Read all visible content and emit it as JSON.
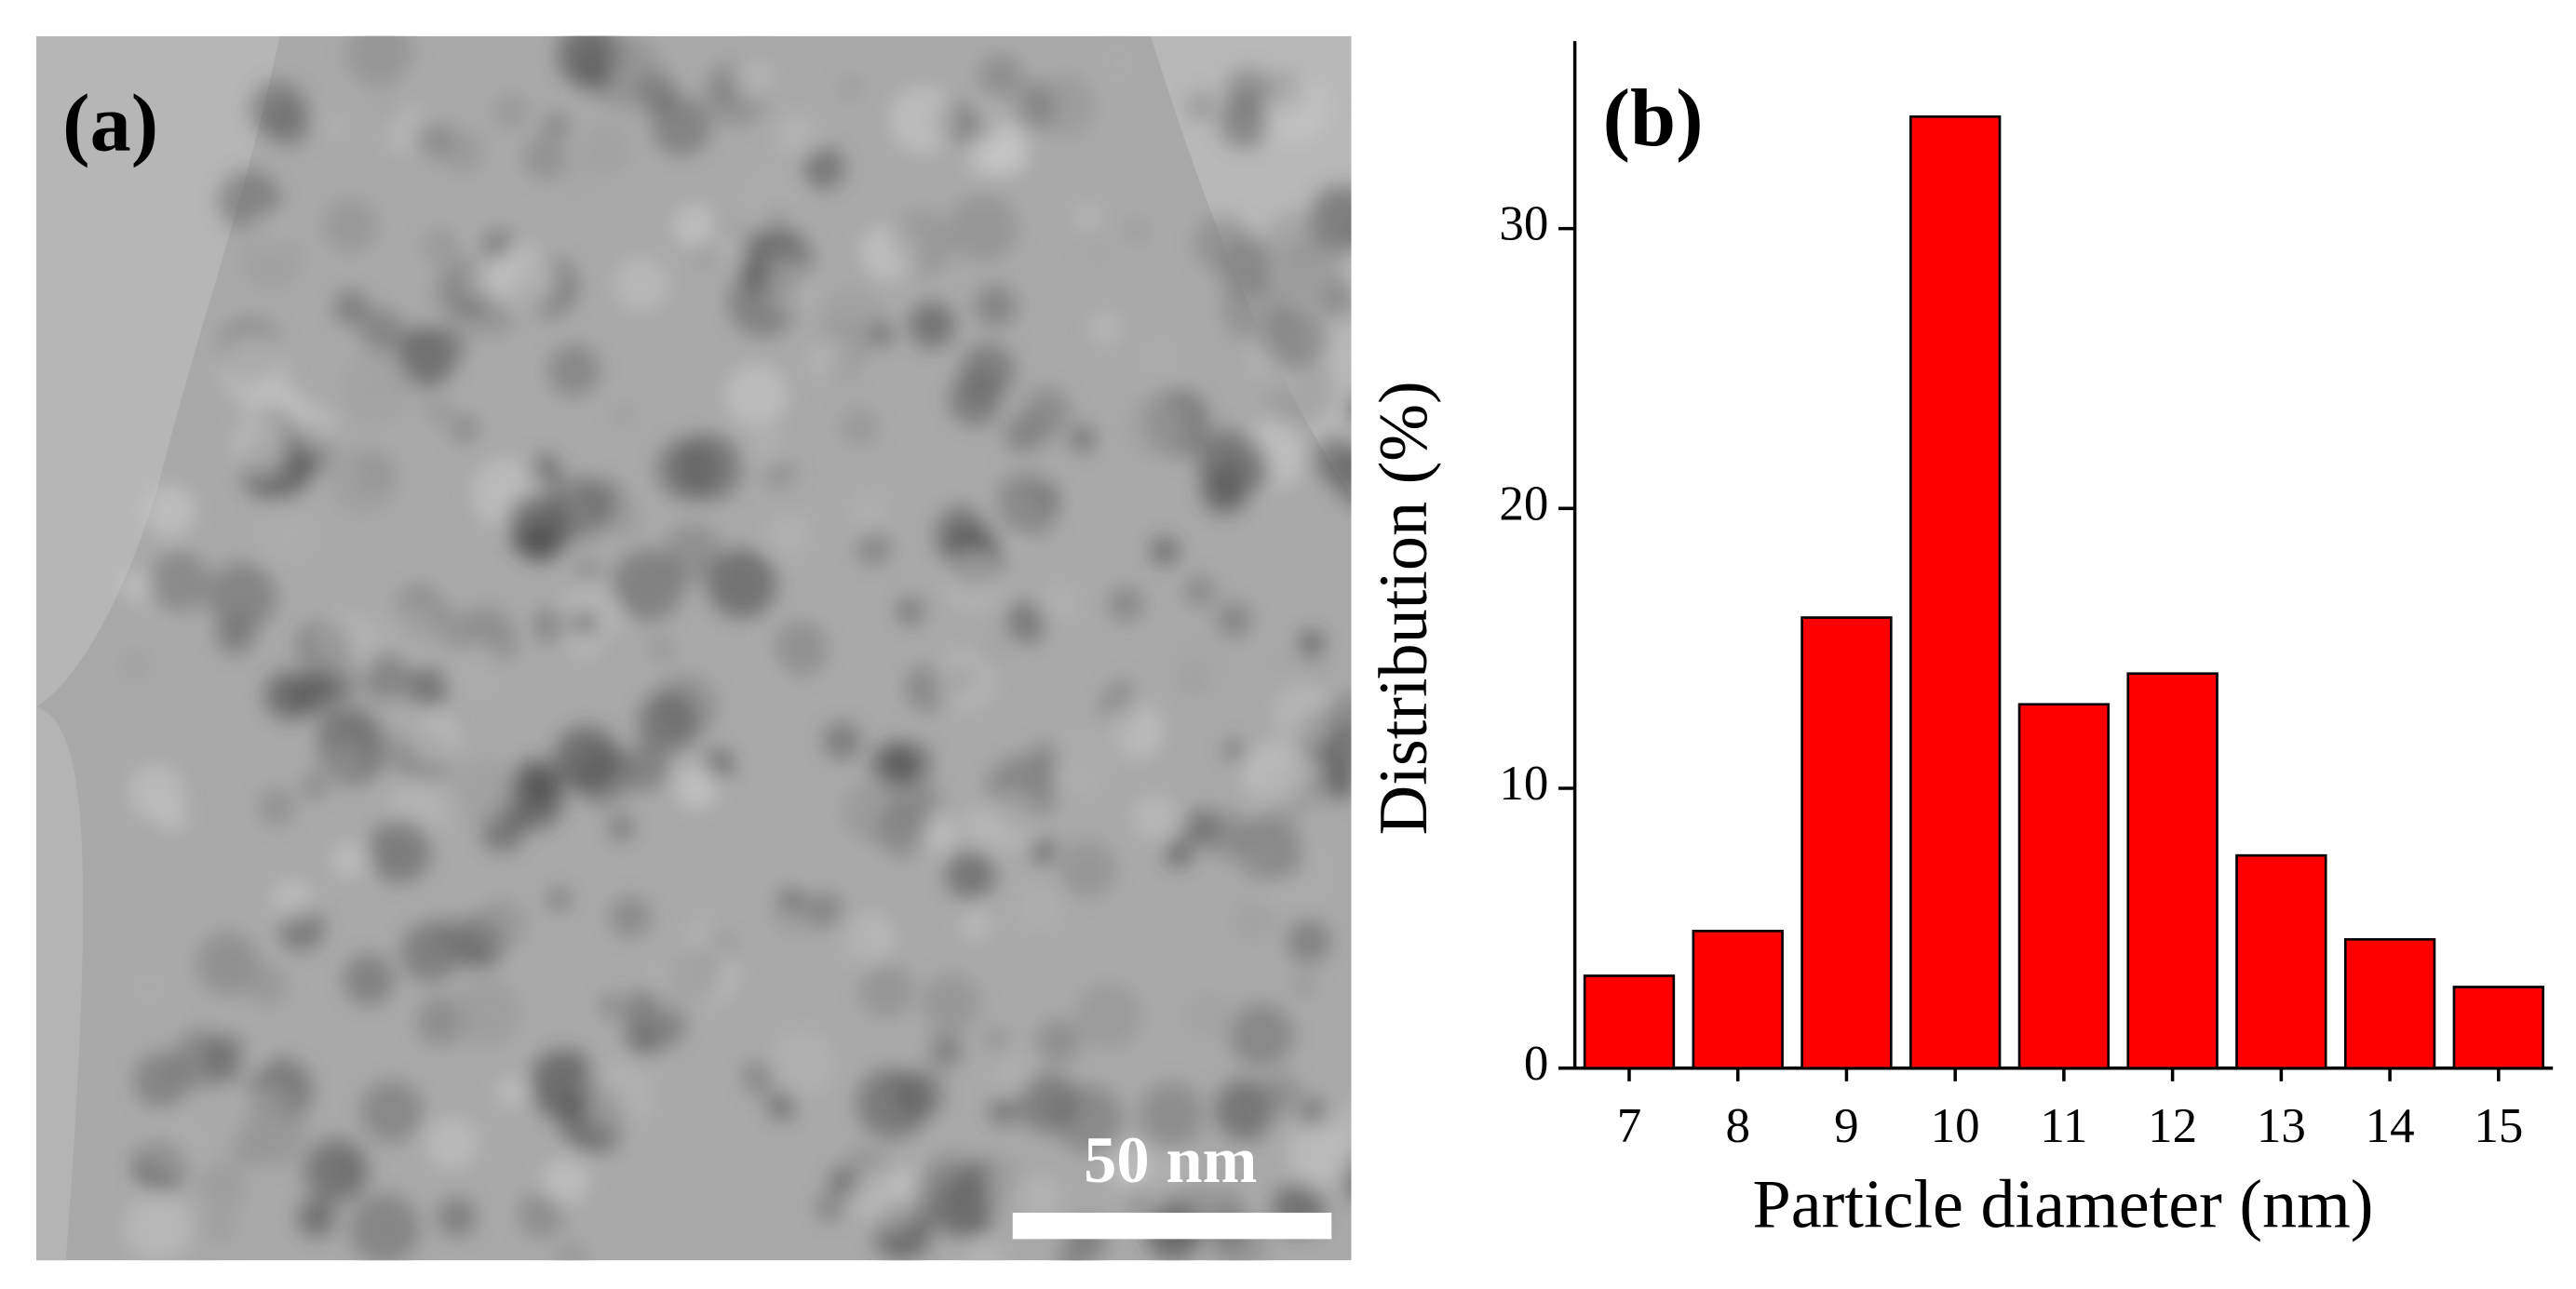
{
  "image_panel": {
    "label": "(a)",
    "scale_bar": "50 nm"
  },
  "chart_data": {
    "type": "bar",
    "panel_label": "(b)",
    "x_label": "Particle diameter (nm)",
    "y_label": "Distribution (%)",
    "categories": [
      "7",
      "8",
      "9",
      "10",
      "11",
      "12",
      "13",
      "14",
      "15"
    ],
    "values": [
      3.3,
      4.9,
      16.1,
      34.0,
      13.0,
      14.1,
      7.6,
      4.6,
      2.9
    ],
    "color": "#ff0000",
    "ylim": [
      0,
      36.7
    ],
    "yticks": [
      0,
      10,
      20,
      30
    ],
    "grid": false
  }
}
